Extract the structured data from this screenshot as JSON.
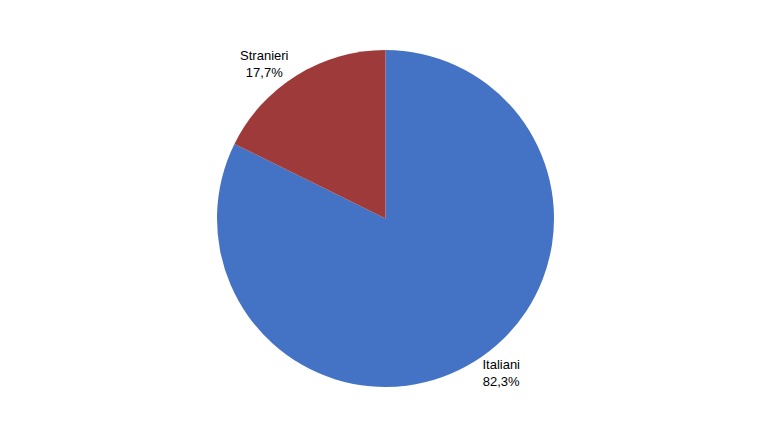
{
  "chart_data": {
    "type": "pie",
    "categories": [
      "Italiani",
      "Stranieri"
    ],
    "values": [
      82.3,
      17.7
    ],
    "value_labels": [
      "Italiani\n82,3%",
      "Stranieri\n17,7%"
    ],
    "colors": [
      "#4472C4",
      "#9E3A3A"
    ],
    "data_labels": true
  }
}
